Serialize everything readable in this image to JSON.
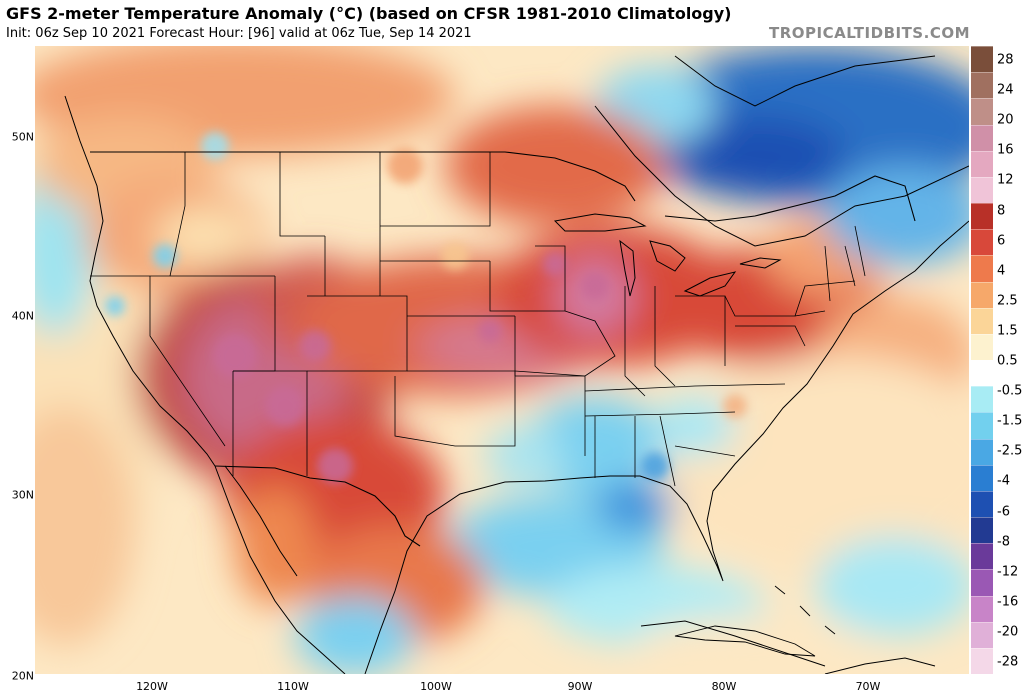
{
  "header": {
    "title": "GFS 2-meter Temperature Anomaly (°C) (based on CFSR 1981-2010 Climatology)",
    "subtitle": "Init: 06z Sep 10 2021   Forecast Hour: [96]   valid at 06z Tue, Sep 14 2021",
    "brand": "TROPICALTIDBITS.COM"
  },
  "axes": {
    "lat_labels": [
      "50N",
      "40N",
      "30N",
      "20N"
    ],
    "lon_labels": [
      "120W",
      "110W",
      "100W",
      "90W",
      "80W",
      "70W"
    ]
  },
  "legend": {
    "labels": [
      "28",
      "24",
      "20",
      "16",
      "12",
      "8",
      "6",
      "4",
      "2.5",
      "1.5",
      "0.5",
      "-0.5",
      "-1.5",
      "-2.5",
      "-4",
      "-6",
      "-8",
      "-12",
      "-16",
      "-20",
      "-28"
    ],
    "colors": [
      "#7a4e3a",
      "#a07060",
      "#bf8f88",
      "#d090a8",
      "#e4a8c0",
      "#f0c4d8",
      "#b83028",
      "#d8483a",
      "#ee7a4c",
      "#f6a86a",
      "#fbd598",
      "#fdf2cf",
      "#ffffff",
      "#a8ecf4",
      "#72d0ee",
      "#4aa8e4",
      "#2a7ed2",
      "#1e50b2",
      "#223a92",
      "#6a3a9a",
      "#9a58b4",
      "#c884c8",
      "#e0b0d8",
      "#f4d8e8"
    ]
  }
}
